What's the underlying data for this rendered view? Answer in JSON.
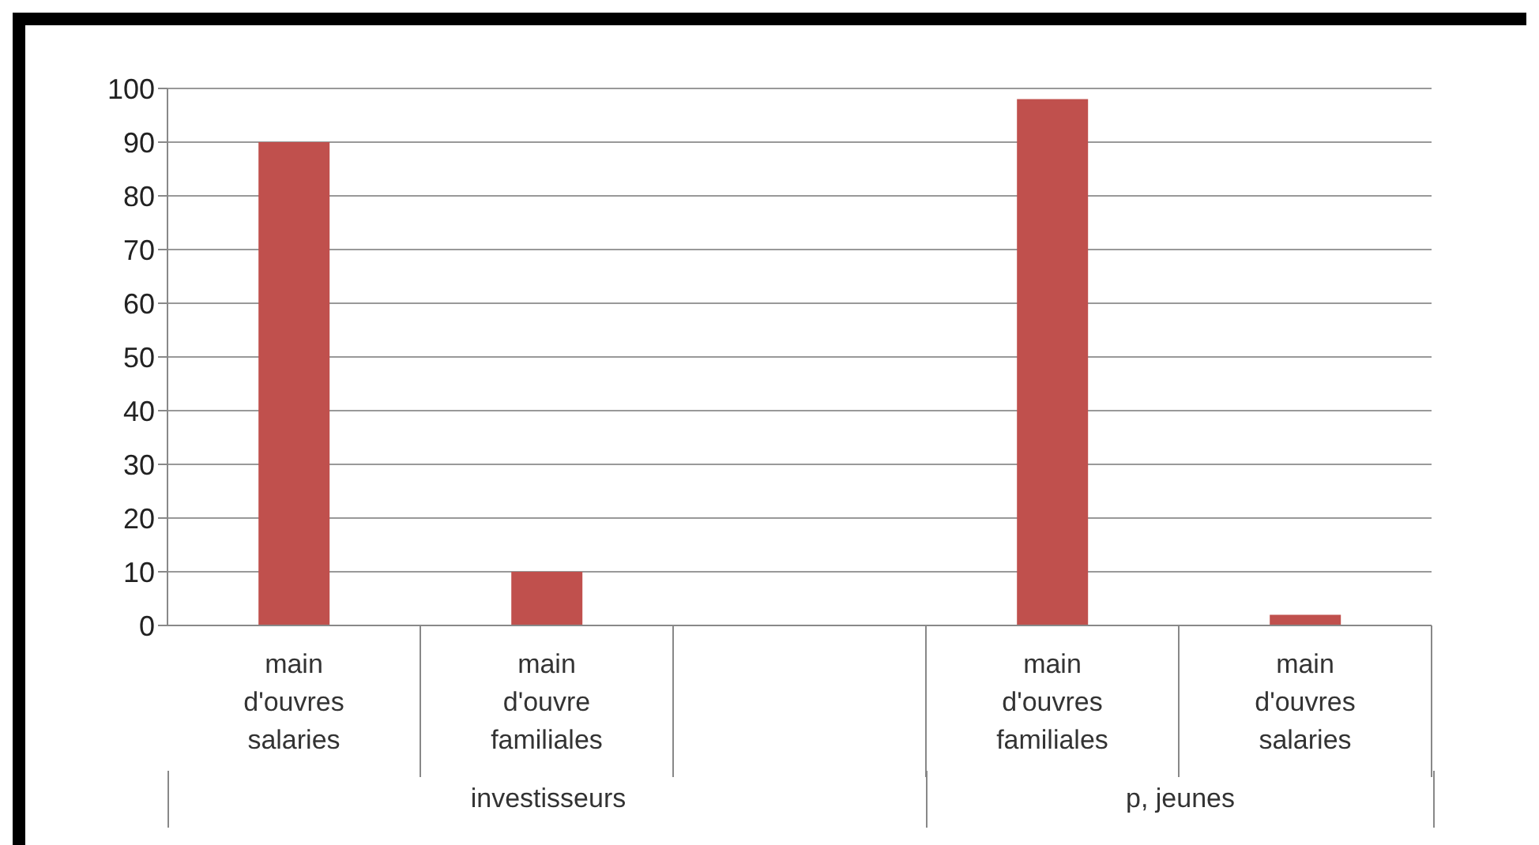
{
  "chart_data": {
    "type": "bar",
    "categories": [
      "main d'ouvres salaries",
      "main d'ouvre familiales",
      null,
      "main d'ouvres familiales",
      "main d'ouvres salaries"
    ],
    "values": [
      90,
      10,
      null,
      98,
      2
    ],
    "color": "#c0504d",
    "ylim": [
      0,
      100
    ],
    "yticks": [
      0,
      10,
      20,
      30,
      40,
      50,
      60,
      70,
      80,
      90,
      100
    ],
    "grid": "y",
    "annotations": [
      "investisseurs",
      "p, jeunes"
    ]
  }
}
